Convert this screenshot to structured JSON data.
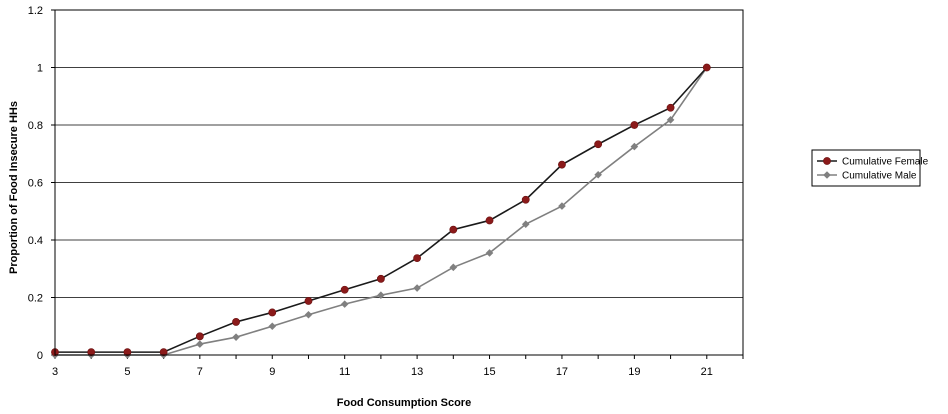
{
  "chart_data": {
    "type": "line",
    "xlabel": "Food Consumption Score",
    "ylabel": "Proportion of Food Insecure HHs",
    "xlim": [
      3,
      22
    ],
    "ylim": [
      0,
      1.2
    ],
    "x_ticks": [
      3,
      5,
      7,
      9,
      11,
      13,
      15,
      17,
      19,
      21
    ],
    "y_ticks": [
      0,
      0.2,
      0.4,
      0.6,
      0.8,
      1,
      1.2
    ],
    "grid": "horizontal",
    "legend_position": "right",
    "x": [
      3,
      4,
      5,
      6,
      7,
      8,
      9,
      10,
      11,
      12,
      13,
      14,
      15,
      16,
      17,
      18,
      19,
      20,
      21
    ],
    "series": [
      {
        "name": "Cumulative Female",
        "color": "#8b1a1a",
        "line_color": "#1a1a1a",
        "marker": "circle",
        "values": [
          0.01,
          0.01,
          0.01,
          0.01,
          0.065,
          0.115,
          0.148,
          0.188,
          0.227,
          0.265,
          0.337,
          0.436,
          0.468,
          0.54,
          0.662,
          0.733,
          0.8,
          0.86,
          1.0
        ]
      },
      {
        "name": "Cumulative Male",
        "color": "#808080",
        "line_color": "#808080",
        "marker": "diamond",
        "values": [
          0.0,
          0.0,
          0.0,
          0.0,
          0.038,
          0.062,
          0.1,
          0.14,
          0.177,
          0.208,
          0.233,
          0.305,
          0.355,
          0.455,
          0.518,
          0.627,
          0.725,
          0.818,
          1.0
        ]
      }
    ]
  }
}
